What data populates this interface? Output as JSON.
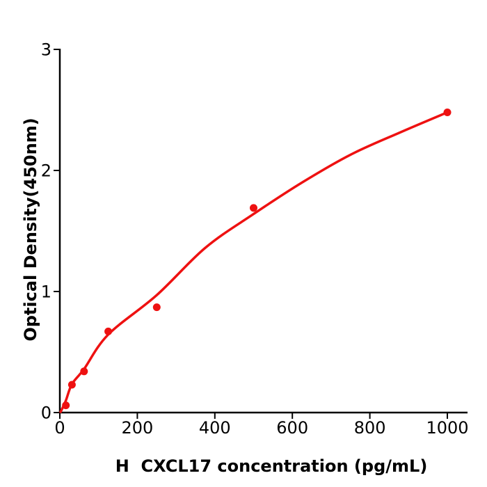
{
  "figure": {
    "background": "#ffffff"
  },
  "chart_data": {
    "type": "scatter",
    "title": "",
    "xlabel": "H  CXCL17 concentration (pg/mL)",
    "ylabel": "Optical Density(450nm)",
    "x_ticks": [
      0,
      200,
      400,
      600,
      800,
      1000
    ],
    "y_ticks": [
      0,
      1,
      2,
      3
    ],
    "xlim": [
      0,
      1052
    ],
    "ylim": [
      0,
      3
    ],
    "grid": false,
    "legend": false,
    "marker": "circle",
    "colors": {
      "points": "#ee1111",
      "curve": "#ee1111",
      "axis": "#000000",
      "background": "#ffffff"
    },
    "points": [
      {
        "x": 15.6,
        "y": 0.06
      },
      {
        "x": 31.25,
        "y": 0.23
      },
      {
        "x": 62.5,
        "y": 0.34
      },
      {
        "x": 125,
        "y": 0.67
      },
      {
        "x": 250,
        "y": 0.87
      },
      {
        "x": 500,
        "y": 1.69
      },
      {
        "x": 1000,
        "y": 2.48
      }
    ],
    "fit_curve": [
      [
        2,
        0.005
      ],
      [
        15.6,
        0.1
      ],
      [
        31.25,
        0.235
      ],
      [
        62.5,
        0.36
      ],
      [
        125,
        0.645
      ],
      [
        250,
        0.97
      ],
      [
        375,
        1.36
      ],
      [
        500,
        1.64
      ],
      [
        625,
        1.9
      ],
      [
        750,
        2.13
      ],
      [
        875,
        2.31
      ],
      [
        1000,
        2.48
      ]
    ]
  }
}
